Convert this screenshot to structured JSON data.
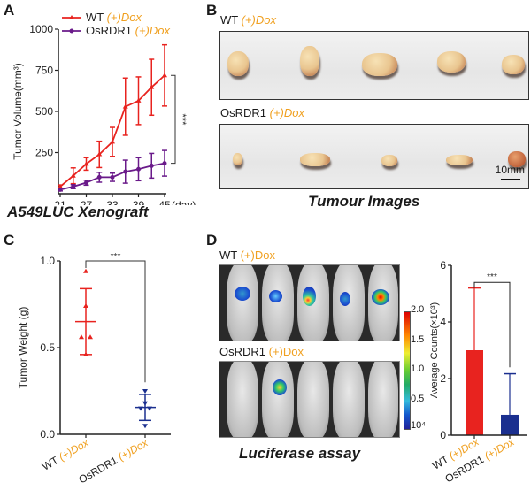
{
  "panels": {
    "A": {
      "letter": "A",
      "caption": "A549LUC Xenograft"
    },
    "B": {
      "letter": "B",
      "caption": "Tumour Images",
      "scale_bar": "10mm",
      "rows": [
        {
          "label": "WT ",
          "dox": "(+)Dox",
          "tumor_count": 5
        },
        {
          "label": "OsRDR1 ",
          "dox": "(+)Dox",
          "tumor_count": 5
        }
      ]
    },
    "C": {
      "letter": "C"
    },
    "D": {
      "letter": "D",
      "caption": "Luciferase assay",
      "rows": [
        {
          "label": "WT ",
          "dox": "(+)Dox"
        },
        {
          "label": "OsRDR1 ",
          "dox": "(+)Dox"
        }
      ],
      "colorbar": {
        "ticks": [
          "2.0",
          "1.5",
          "1.0",
          "0.5",
          "10⁴"
        ]
      }
    }
  },
  "colors": {
    "wt": "#e8231f",
    "osrdr1": "#6a1a8a",
    "osrdr1_bar": "#1a2f8f",
    "dox": "#f0a020"
  },
  "chart_data": [
    {
      "id": "A",
      "type": "line",
      "title": "",
      "xlabel": "(day)",
      "ylabel": "Tumor Volume(mm³)",
      "x": [
        21,
        24,
        27,
        30,
        33,
        36,
        39,
        42,
        45
      ],
      "xticks": [
        "21",
        "27",
        "33",
        "39",
        "45"
      ],
      "yticks": [
        "250",
        "500",
        "750",
        "1000"
      ],
      "ylim": [
        0,
        1000
      ],
      "xlim": [
        21,
        45
      ],
      "series": [
        {
          "name": "WT",
          "suffix": "(+)Dox",
          "marker": "triangle",
          "values": [
            43,
            109,
            181,
            239,
            315,
            529,
            565,
            647,
            719
          ],
          "error": [
            10,
            48,
            38,
            80,
            88,
            174,
            145,
            170,
            186
          ]
        },
        {
          "name": "OsRDR1",
          "suffix": "(+)Dox",
          "marker": "circle",
          "values": [
            25,
            43,
            67,
            100,
            100,
            134,
            149,
            170,
            185
          ],
          "error": [
            8,
            12,
            15,
            30,
            25,
            70,
            70,
            75,
            78
          ]
        }
      ],
      "annotation": "***",
      "legend": "top-left"
    },
    {
      "id": "C",
      "type": "scatter",
      "ylabel": "Tumor Weight (g)",
      "categories": [
        {
          "name": "WT ",
          "suffix": "(+)Dox"
        },
        {
          "name": "OsRDR1 ",
          "suffix": "(+)Dox"
        }
      ],
      "yticks": [
        "0.0",
        "0.5",
        "1.0"
      ],
      "ylim": [
        0,
        1.0
      ],
      "groups": [
        {
          "name": "WT",
          "points": [
            0.94,
            0.74,
            0.56,
            0.56,
            0.46
          ],
          "mean": 0.65,
          "sd": 0.19,
          "marker": "triangle-up"
        },
        {
          "name": "OsRDR1",
          "points": [
            0.25,
            0.18,
            0.15,
            0.15,
            0.05
          ],
          "mean": 0.155,
          "sd": 0.075,
          "marker": "triangle-down"
        }
      ],
      "annotation": "***"
    },
    {
      "id": "D",
      "type": "bar",
      "ylabel": "Average Counts(×10³)",
      "categories": [
        {
          "name": "WT ",
          "suffix": "(+)Dox"
        },
        {
          "name": "OsRDR1 ",
          "suffix": "(+)Dox"
        }
      ],
      "values": [
        3.0,
        0.72
      ],
      "error": [
        2.2,
        1.45
      ],
      "yticks": [
        "0",
        "2",
        "4",
        "6"
      ],
      "ylim": [
        0,
        6
      ],
      "annotation": "***"
    }
  ]
}
